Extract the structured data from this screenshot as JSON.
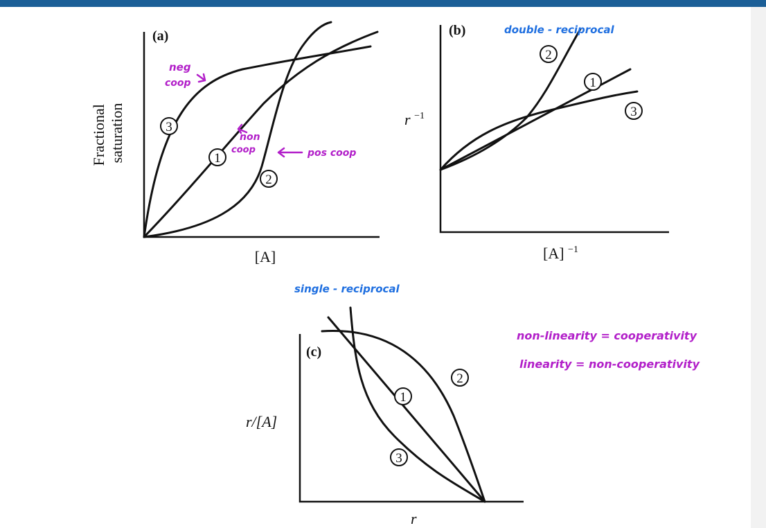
{
  "panels": {
    "a": {
      "letter": "(a)",
      "ylabel_line1": "Fractional",
      "ylabel_line2": "saturation",
      "xlabel": "[A]",
      "curves": [
        "3",
        "1",
        "2"
      ]
    },
    "b": {
      "letter": "(b)",
      "ylabel": "r",
      "ylabel_sup": "−1",
      "xlabel": "[A]",
      "xlabel_sup": "−1",
      "curves": [
        "2",
        "1",
        "3"
      ]
    },
    "c": {
      "letter": "(c)",
      "ylabel": "r/[A]",
      "xlabel": "r",
      "curves": [
        "1",
        "2",
        "3"
      ]
    }
  },
  "annotations": {
    "neg_coop_1": "neg",
    "neg_coop_2": "coop",
    "non_coop_1": "non",
    "non_coop_2": "coop",
    "pos_coop": "pos coop",
    "double_reciprocal": "double - reciprocal",
    "single_reciprocal": "single - reciprocal",
    "note_1": "non-linearity = cooperativity",
    "note_2": "linearity = non-cooperativity"
  },
  "colors": {
    "header_bar": "#1c5f97",
    "annotation_purple": "#b21fc9",
    "annotation_blue": "#1f6fe0"
  }
}
